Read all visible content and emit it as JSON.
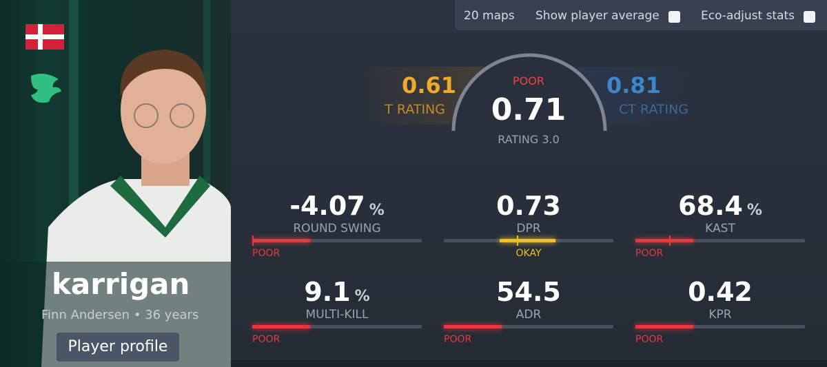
{
  "filters": {
    "maps": "20 maps",
    "show_average": "Show player average",
    "eco_adjust": "Eco-adjust stats"
  },
  "player": {
    "nickname": "karrigan",
    "name": "Finn Andersen",
    "separator": "•",
    "age": "36 years",
    "profile_button": "Player profile"
  },
  "rating": {
    "t_value": 0.61,
    "t_label": "T RATING",
    "overall_grade": "POOR",
    "overall_value": 0.71,
    "overall_label": "RATING 3.0",
    "ct_value": 0.81,
    "ct_label": "CT RATING"
  },
  "stats": [
    {
      "value": -4.07,
      "unit": "%",
      "label": "ROUND SWING",
      "grade": "POOR"
    },
    {
      "value": 0.73,
      "label": "DPR",
      "grade": "OKAY"
    },
    {
      "value": 68.4,
      "unit": "%",
      "label": "KAST",
      "grade": "POOR"
    },
    {
      "value": 9.1,
      "unit": "%",
      "label": "MULTI-KILL",
      "grade": "POOR"
    },
    {
      "value": 54.5,
      "label": "ADR",
      "grade": "POOR"
    },
    {
      "value": 0.42,
      "label": "KPR",
      "grade": "POOR"
    }
  ]
}
